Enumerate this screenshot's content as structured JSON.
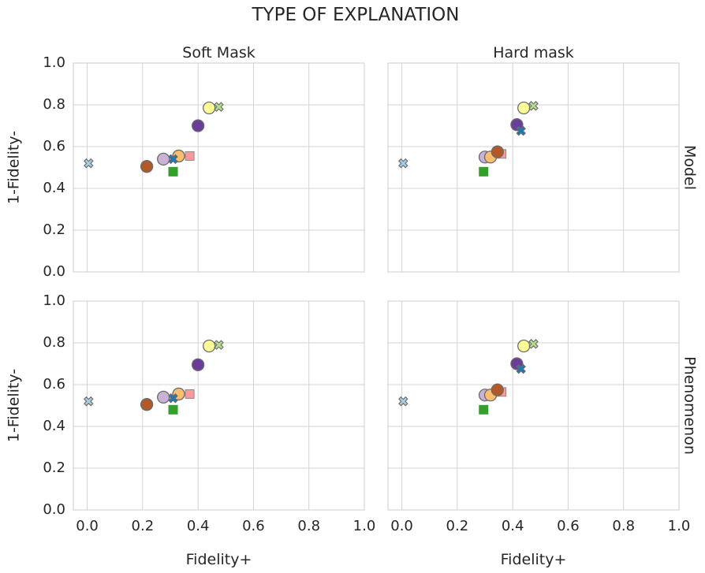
{
  "chart_data": {
    "type": "scatter",
    "title": "TYPE OF EXPLANATION",
    "column_titles": [
      "Soft Mask",
      "Hard mask"
    ],
    "row_titles": [
      "Model",
      "Phenomenon"
    ],
    "xlabel": "Fidelity+",
    "ylabel": "1-Fidelity-",
    "xlim": [
      -0.05,
      1.0
    ],
    "ylim": [
      0.0,
      1.0
    ],
    "xticks": [
      "0.0",
      "0.2",
      "0.4",
      "0.6",
      "0.8",
      "1.0"
    ],
    "yticks": [
      "0.0",
      "0.2",
      "0.4",
      "0.6",
      "0.8",
      "1.0"
    ],
    "grid": true,
    "panels": [
      {
        "row": "Model",
        "column": "Soft Mask",
        "points": [
          {
            "x": 0.005,
            "y": 0.52,
            "marker": "x",
            "color": "#a6cee3"
          },
          {
            "x": 0.215,
            "y": 0.505,
            "marker": "o",
            "color": "#b15928"
          },
          {
            "x": 0.31,
            "y": 0.48,
            "marker": "s",
            "color": "#33a02c"
          },
          {
            "x": 0.31,
            "y": 0.54,
            "marker": "x",
            "color": "#1f78b4"
          },
          {
            "x": 0.275,
            "y": 0.54,
            "marker": "o",
            "color": "#cab2d6"
          },
          {
            "x": 0.33,
            "y": 0.555,
            "marker": "o",
            "color": "#fdbf6f"
          },
          {
            "x": 0.37,
            "y": 0.555,
            "marker": "s",
            "color": "#fb9a99"
          },
          {
            "x": 0.4,
            "y": 0.7,
            "marker": "o",
            "color": "#6a3d9a"
          },
          {
            "x": 0.44,
            "y": 0.785,
            "marker": "o",
            "color": "#ffff99"
          },
          {
            "x": 0.475,
            "y": 0.79,
            "marker": "x",
            "color": "#b2df8a"
          }
        ]
      },
      {
        "row": "Model",
        "column": "Hard mask",
        "points": [
          {
            "x": 0.005,
            "y": 0.52,
            "marker": "x",
            "color": "#a6cee3"
          },
          {
            "x": 0.295,
            "y": 0.48,
            "marker": "s",
            "color": "#33a02c"
          },
          {
            "x": 0.3,
            "y": 0.55,
            "marker": "o",
            "color": "#cab2d6"
          },
          {
            "x": 0.32,
            "y": 0.55,
            "marker": "o",
            "color": "#fdbf6f"
          },
          {
            "x": 0.36,
            "y": 0.565,
            "marker": "s",
            "color": "#fb9a99"
          },
          {
            "x": 0.345,
            "y": 0.575,
            "marker": "o",
            "color": "#b15928"
          },
          {
            "x": 0.43,
            "y": 0.675,
            "marker": "x",
            "color": "#1f78b4"
          },
          {
            "x": 0.415,
            "y": 0.705,
            "marker": "o",
            "color": "#6a3d9a"
          },
          {
            "x": 0.44,
            "y": 0.785,
            "marker": "o",
            "color": "#ffff99"
          },
          {
            "x": 0.475,
            "y": 0.795,
            "marker": "x",
            "color": "#b2df8a"
          }
        ]
      },
      {
        "row": "Phenomenon",
        "column": "Soft Mask",
        "points": [
          {
            "x": 0.005,
            "y": 0.52,
            "marker": "x",
            "color": "#a6cee3"
          },
          {
            "x": 0.215,
            "y": 0.505,
            "marker": "o",
            "color": "#b15928"
          },
          {
            "x": 0.31,
            "y": 0.48,
            "marker": "s",
            "color": "#33a02c"
          },
          {
            "x": 0.31,
            "y": 0.535,
            "marker": "x",
            "color": "#1f78b4"
          },
          {
            "x": 0.275,
            "y": 0.54,
            "marker": "o",
            "color": "#cab2d6"
          },
          {
            "x": 0.33,
            "y": 0.555,
            "marker": "o",
            "color": "#fdbf6f"
          },
          {
            "x": 0.37,
            "y": 0.555,
            "marker": "s",
            "color": "#fb9a99"
          },
          {
            "x": 0.4,
            "y": 0.695,
            "marker": "o",
            "color": "#6a3d9a"
          },
          {
            "x": 0.44,
            "y": 0.785,
            "marker": "o",
            "color": "#ffff99"
          },
          {
            "x": 0.475,
            "y": 0.79,
            "marker": "x",
            "color": "#b2df8a"
          }
        ]
      },
      {
        "row": "Phenomenon",
        "column": "Hard mask",
        "points": [
          {
            "x": 0.005,
            "y": 0.52,
            "marker": "x",
            "color": "#a6cee3"
          },
          {
            "x": 0.295,
            "y": 0.48,
            "marker": "s",
            "color": "#33a02c"
          },
          {
            "x": 0.3,
            "y": 0.55,
            "marker": "o",
            "color": "#cab2d6"
          },
          {
            "x": 0.32,
            "y": 0.55,
            "marker": "o",
            "color": "#fdbf6f"
          },
          {
            "x": 0.36,
            "y": 0.565,
            "marker": "s",
            "color": "#fb9a99"
          },
          {
            "x": 0.345,
            "y": 0.575,
            "marker": "o",
            "color": "#b15928"
          },
          {
            "x": 0.43,
            "y": 0.675,
            "marker": "x",
            "color": "#1f78b4"
          },
          {
            "x": 0.415,
            "y": 0.7,
            "marker": "o",
            "color": "#6a3d9a"
          },
          {
            "x": 0.44,
            "y": 0.785,
            "marker": "o",
            "color": "#ffff99"
          },
          {
            "x": 0.475,
            "y": 0.795,
            "marker": "x",
            "color": "#b2df8a"
          }
        ]
      }
    ]
  }
}
